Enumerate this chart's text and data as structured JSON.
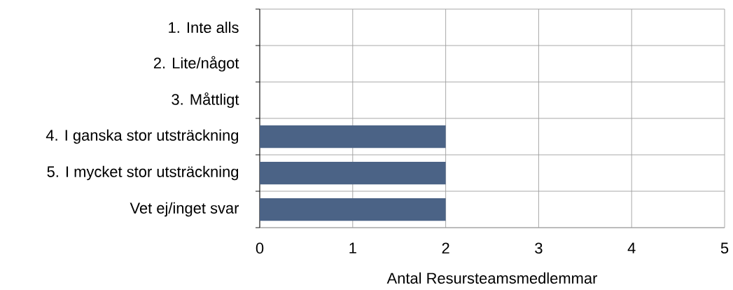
{
  "chart_data": {
    "type": "bar",
    "orientation": "horizontal",
    "categories": [
      "1. Inte alls",
      "2. Lite/något",
      "3. Måttligt",
      "4. I ganska stor utsträckning",
      "5. I mycket stor utsträckning",
      "Vet ej/inget svar"
    ],
    "values": [
      0,
      0,
      0,
      2,
      2,
      2
    ],
    "color": "#4b6386",
    "xlabel": "Antal Resursteamsmedlemmar",
    "xlim": [
      0,
      5
    ],
    "xticks": [
      0,
      1,
      2,
      3,
      4,
      5
    ],
    "grid": true
  }
}
